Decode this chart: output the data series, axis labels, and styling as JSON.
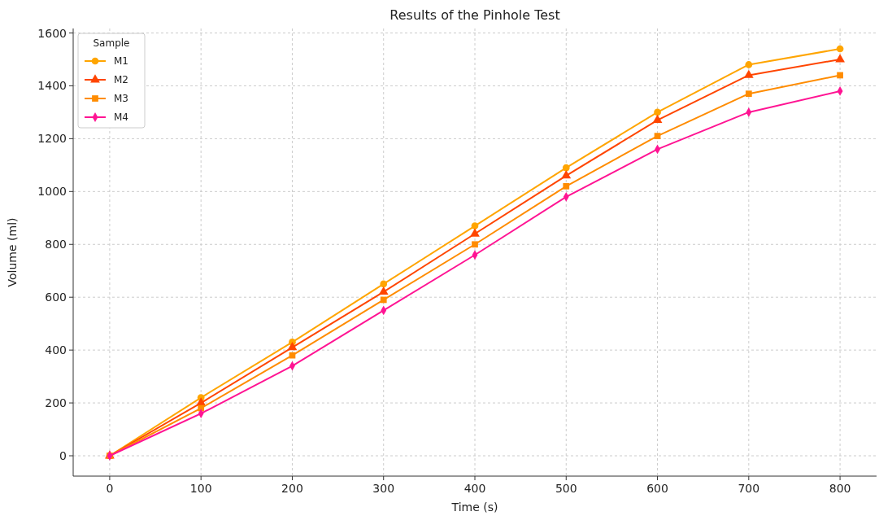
{
  "chart_data": {
    "type": "line",
    "title": "Results of the Pinhole Test",
    "xlabel": "Time (s)",
    "ylabel": "Volume (ml)",
    "legend_title": "Sample",
    "x": [
      0,
      100,
      200,
      300,
      400,
      500,
      600,
      700,
      800
    ],
    "series": [
      {
        "name": "M1",
        "color": "#ffa500",
        "marker": "circle",
        "values": [
          0,
          220,
          430,
          650,
          870,
          1090,
          1300,
          1480,
          1540
        ]
      },
      {
        "name": "M2",
        "color": "#ff4500",
        "marker": "triangle",
        "values": [
          0,
          200,
          410,
          620,
          840,
          1060,
          1270,
          1440,
          1500
        ]
      },
      {
        "name": "M3",
        "color": "#ff8c00",
        "marker": "square",
        "values": [
          0,
          180,
          380,
          590,
          800,
          1020,
          1210,
          1370,
          1440
        ]
      },
      {
        "name": "M4",
        "color": "#ff1493",
        "marker": "diamond",
        "values": [
          0,
          160,
          340,
          550,
          760,
          980,
          1160,
          1300,
          1380
        ]
      }
    ],
    "xlim": [
      -40,
      840
    ],
    "xticks": [
      0,
      100,
      200,
      300,
      400,
      500,
      600,
      700,
      800
    ],
    "ylim": [
      -77,
      1617
    ],
    "yticks": [
      0,
      200,
      400,
      600,
      800,
      1000,
      1200,
      1400,
      1600
    ],
    "grid": true,
    "legend": "top left",
    "line_style": "solid"
  }
}
